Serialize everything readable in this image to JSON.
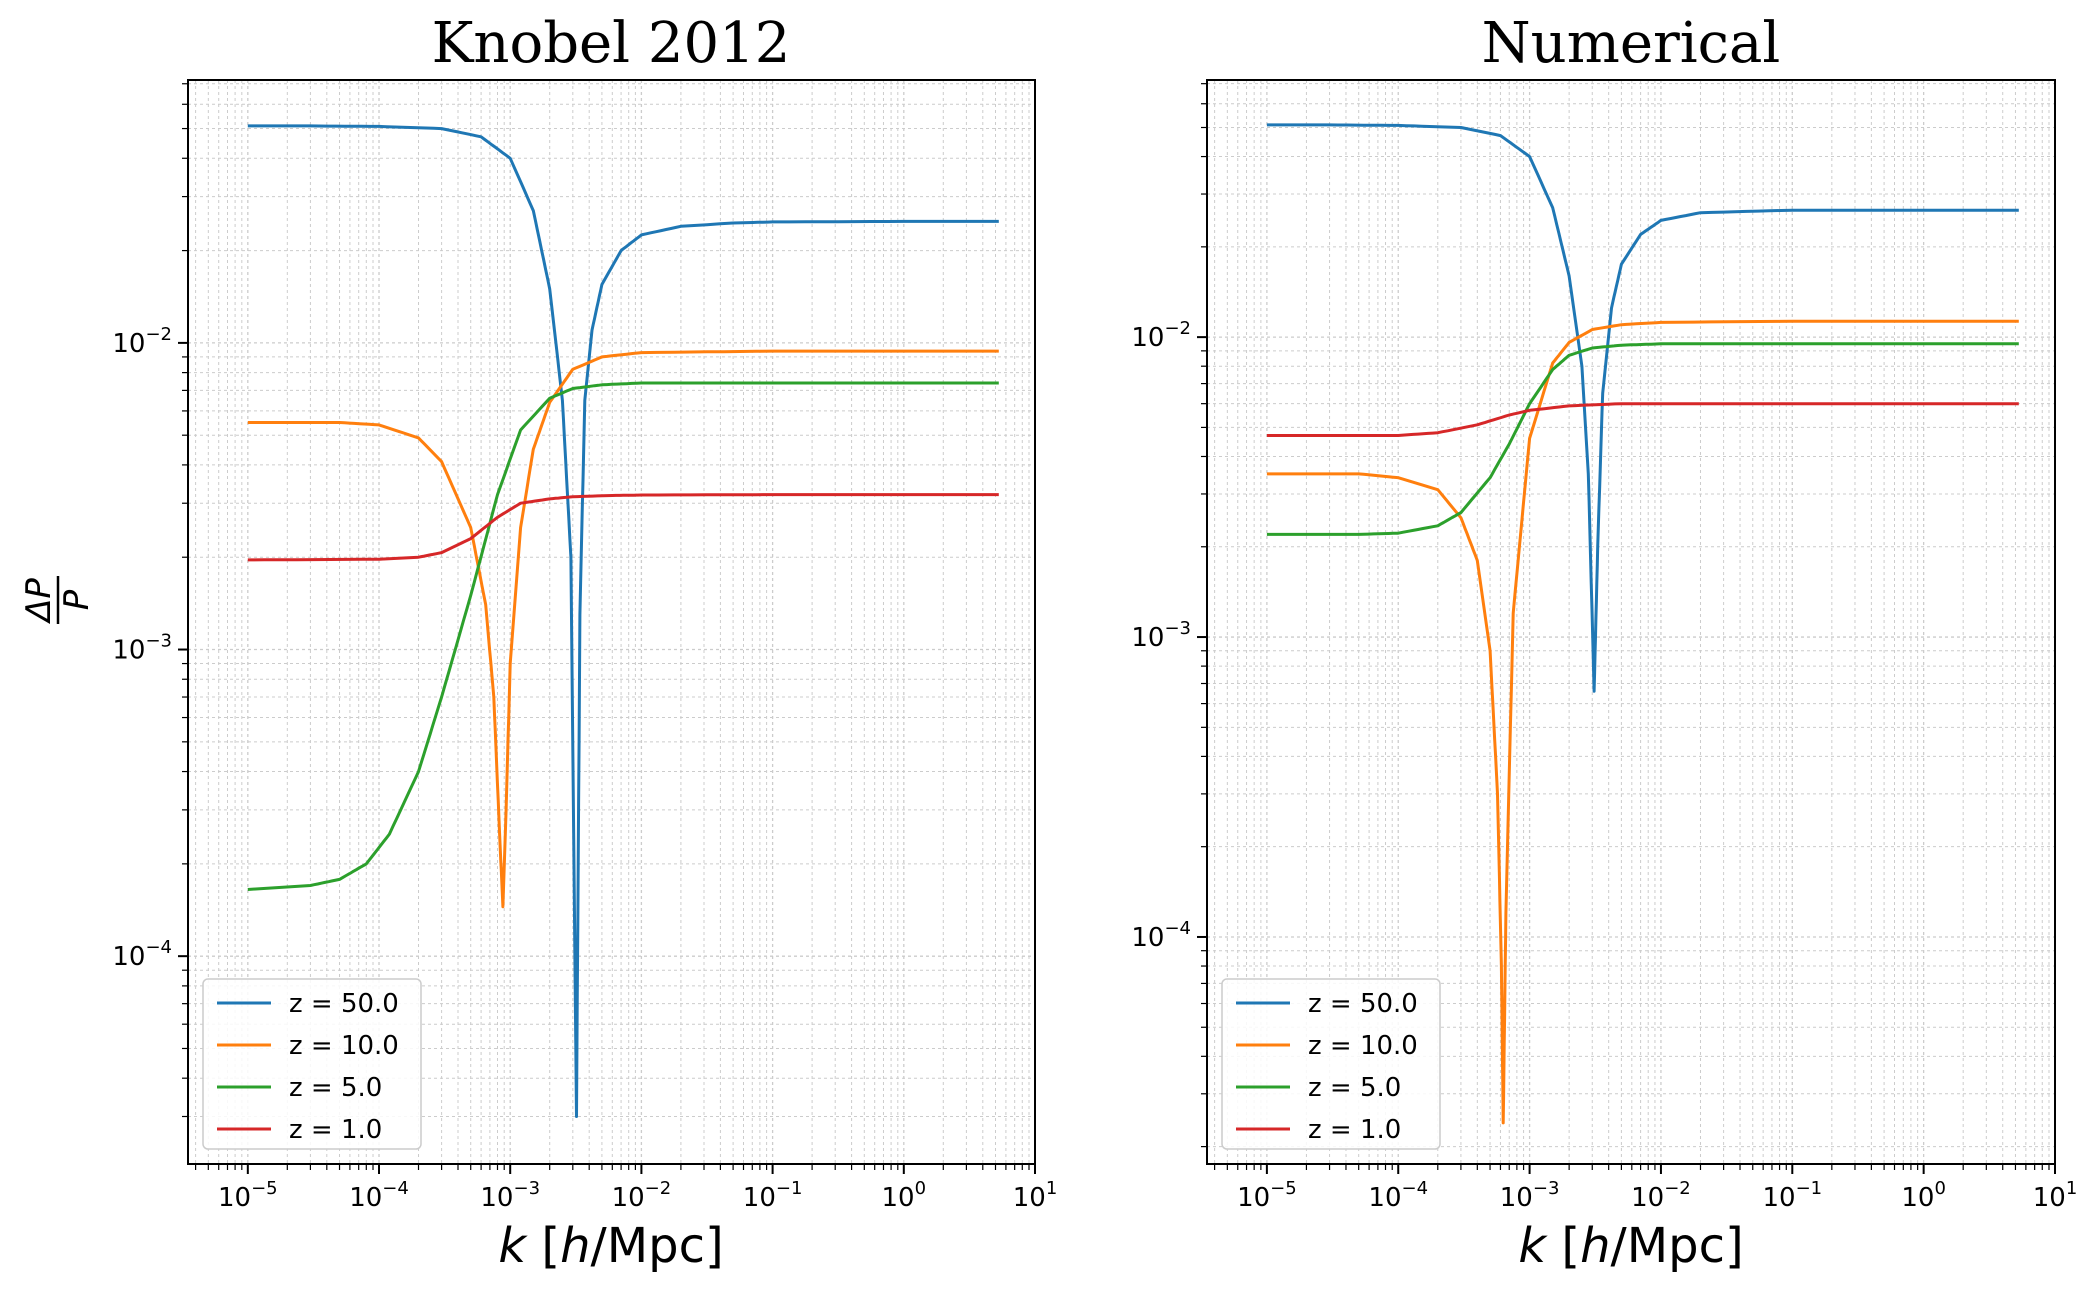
{
  "chart_data": [
    {
      "type": "line",
      "title": "Knobel 2012",
      "xlabel": "k [h/Mpc]",
      "ylabel": "ΔP/P",
      "xscale": "log",
      "yscale": "log",
      "xlim": [
        3.5e-06,
        10
      ],
      "ylim": [
        2.1e-05,
        0.072
      ],
      "grid": true,
      "legend_location": "lower-left",
      "x_ticks": [
        {
          "base": "10",
          "exp": "−5"
        },
        {
          "base": "10",
          "exp": "−4"
        },
        {
          "base": "10",
          "exp": "−3"
        },
        {
          "base": "10",
          "exp": "−2"
        },
        {
          "base": "10",
          "exp": "−1"
        },
        {
          "base": "10",
          "exp": "0"
        },
        {
          "base": "10",
          "exp": "1"
        }
      ],
      "y_ticks": [
        {
          "base": "10",
          "exp": "−4"
        },
        {
          "base": "10",
          "exp": "−3"
        },
        {
          "base": "10",
          "exp": "−2"
        }
      ],
      "series": [
        {
          "name": "z = 50.0",
          "color": "#1f77b4",
          "x": [
            1e-05,
            3e-05,
            0.0001,
            0.0003,
            0.0006,
            0.001,
            0.0015,
            0.002,
            0.0025,
            0.0029,
            0.0032,
            0.0034,
            0.0037,
            0.0042,
            0.005,
            0.007,
            0.01,
            0.02,
            0.05,
            0.1,
            1,
            5.3
          ],
          "y": [
            0.051,
            0.051,
            0.0508,
            0.05,
            0.047,
            0.04,
            0.027,
            0.015,
            0.0065,
            0.002,
            3e-05,
            0.0013,
            0.0065,
            0.011,
            0.0155,
            0.02,
            0.0225,
            0.024,
            0.0246,
            0.0248,
            0.0249,
            0.0249
          ]
        },
        {
          "name": "z = 10.0",
          "color": "#ff7f0e",
          "x": [
            1e-05,
            5e-05,
            0.0001,
            0.0002,
            0.0003,
            0.0005,
            0.00065,
            0.00075,
            0.00083,
            0.00088,
            0.00093,
            0.001,
            0.0012,
            0.0015,
            0.002,
            0.003,
            0.005,
            0.01,
            0.1,
            1,
            5.3
          ],
          "y": [
            0.0055,
            0.0055,
            0.0054,
            0.0049,
            0.0041,
            0.0025,
            0.0014,
            0.0007,
            0.00025,
            0.000145,
            0.0003,
            0.0009,
            0.0025,
            0.0045,
            0.0064,
            0.0082,
            0.009,
            0.0093,
            0.0094,
            0.0094,
            0.0094
          ]
        },
        {
          "name": "z = 5.0",
          "color": "#2ca02c",
          "x": [
            1e-05,
            3e-05,
            5e-05,
            8e-05,
            0.00012,
            0.0002,
            0.0003,
            0.0005,
            0.0008,
            0.0012,
            0.002,
            0.003,
            0.005,
            0.01,
            0.1,
            1,
            5.3
          ],
          "y": [
            0.000165,
            0.00017,
            0.000178,
            0.0002,
            0.00025,
            0.0004,
            0.0007,
            0.0015,
            0.0032,
            0.0052,
            0.0066,
            0.0071,
            0.0073,
            0.0074,
            0.0074,
            0.0074,
            0.0074
          ]
        },
        {
          "name": "z = 1.0",
          "color": "#d62728",
          "x": [
            1e-05,
            0.0001,
            0.0002,
            0.0003,
            0.0005,
            0.0008,
            0.0012,
            0.002,
            0.003,
            0.006,
            0.01,
            0.1,
            1,
            5.3
          ],
          "y": [
            0.00196,
            0.00197,
            0.002,
            0.00207,
            0.0023,
            0.0027,
            0.003,
            0.0031,
            0.00315,
            0.00318,
            0.00319,
            0.0032,
            0.0032,
            0.0032
          ]
        }
      ]
    },
    {
      "type": "line",
      "title": "Numerical",
      "xlabel": "k [h/Mpc]",
      "ylabel": "",
      "xscale": "log",
      "yscale": "log",
      "xlim": [
        3.5e-06,
        10
      ],
      "ylim": [
        1.75e-05,
        0.072
      ],
      "grid": true,
      "legend_location": "lower-left",
      "x_ticks": [
        {
          "base": "10",
          "exp": "−5"
        },
        {
          "base": "10",
          "exp": "−4"
        },
        {
          "base": "10",
          "exp": "−3"
        },
        {
          "base": "10",
          "exp": "−2"
        },
        {
          "base": "10",
          "exp": "−1"
        },
        {
          "base": "10",
          "exp": "0"
        },
        {
          "base": "10",
          "exp": "1"
        }
      ],
      "y_ticks": [
        {
          "base": "10",
          "exp": "−4"
        },
        {
          "base": "10",
          "exp": "−3"
        },
        {
          "base": "10",
          "exp": "−2"
        }
      ],
      "series": [
        {
          "name": "z = 50.0",
          "color": "#1f77b4",
          "x": [
            1e-05,
            3e-05,
            0.0001,
            0.0003,
            0.0006,
            0.001,
            0.0015,
            0.002,
            0.0025,
            0.0028,
            0.0031,
            0.0033,
            0.0036,
            0.0042,
            0.005,
            0.007,
            0.01,
            0.02,
            0.1,
            1,
            5.3
          ],
          "y": [
            0.051,
            0.051,
            0.0508,
            0.05,
            0.047,
            0.04,
            0.027,
            0.016,
            0.008,
            0.0035,
            0.00066,
            0.002,
            0.0065,
            0.0125,
            0.0175,
            0.022,
            0.0245,
            0.026,
            0.0265,
            0.0265,
            0.0265
          ]
        },
        {
          "name": "z = 10.0",
          "color": "#ff7f0e",
          "x": [
            1e-05,
            5e-05,
            0.0001,
            0.0002,
            0.0003,
            0.0004,
            0.0005,
            0.00057,
            0.00061,
            0.00063,
            0.00066,
            0.00075,
            0.001,
            0.0015,
            0.002,
            0.003,
            0.005,
            0.01,
            0.1,
            1,
            5.3
          ],
          "y": [
            0.0035,
            0.0035,
            0.0034,
            0.0031,
            0.0025,
            0.0018,
            0.0009,
            0.0003,
            8e-05,
            2.4e-05,
            0.00012,
            0.0012,
            0.0046,
            0.0082,
            0.0096,
            0.0106,
            0.011,
            0.0112,
            0.0113,
            0.0113,
            0.0113
          ]
        },
        {
          "name": "z = 5.0",
          "color": "#2ca02c",
          "x": [
            1e-05,
            5e-05,
            0.0001,
            0.0002,
            0.0003,
            0.0005,
            0.0007,
            0.001,
            0.0015,
            0.002,
            0.003,
            0.005,
            0.01,
            0.1,
            1,
            5.3
          ],
          "y": [
            0.0022,
            0.0022,
            0.00222,
            0.00235,
            0.0026,
            0.0034,
            0.0044,
            0.006,
            0.0078,
            0.0087,
            0.0092,
            0.0094,
            0.0095,
            0.0095,
            0.0095,
            0.0095
          ]
        },
        {
          "name": "z = 1.0",
          "color": "#d62728",
          "x": [
            1e-05,
            0.0001,
            0.0002,
            0.0004,
            0.0007,
            0.001,
            0.002,
            0.005,
            0.01,
            0.1,
            1,
            5.3
          ],
          "y": [
            0.0047,
            0.0047,
            0.0048,
            0.0051,
            0.0055,
            0.0057,
            0.0059,
            0.006,
            0.006,
            0.006,
            0.006,
            0.006
          ]
        }
      ]
    }
  ]
}
